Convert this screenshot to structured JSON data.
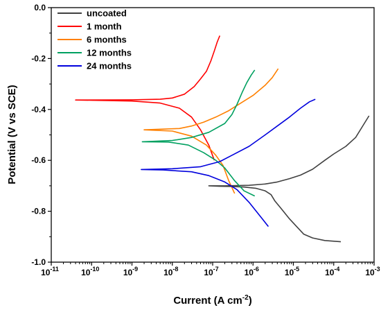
{
  "chart_data": {
    "type": "line",
    "xlabel": "Current (A cm⁻²)",
    "ylabel": "Potential (V vs SCE)",
    "xscale": "log",
    "xlim": [
      1e-11,
      0.001
    ],
    "ylim": [
      -1.0,
      0.0
    ],
    "x_tick_labels": [
      {
        "base": "10",
        "exp": "-11"
      },
      {
        "base": "10",
        "exp": "-10"
      },
      {
        "base": "10",
        "exp": "-9"
      },
      {
        "base": "10",
        "exp": "-8"
      },
      {
        "base": "10",
        "exp": "-7"
      },
      {
        "base": "10",
        "exp": "-6"
      },
      {
        "base": "10",
        "exp": "-5"
      },
      {
        "base": "10",
        "exp": "-4"
      },
      {
        "base": "10",
        "exp": "-3"
      }
    ],
    "y_tick_labels": [
      "-1.0",
      "-0.8",
      "-0.6",
      "-0.4",
      "-0.2",
      "0.0"
    ],
    "grid": false,
    "legend_position": "top-left",
    "series": [
      {
        "name": "uncoated",
        "color": "#404040",
        "points": [
          [
            0.00015,
            -0.92
          ],
          [
            6e-05,
            -0.915
          ],
          [
            3e-05,
            -0.905
          ],
          [
            1.8e-05,
            -0.89
          ],
          [
            1.2e-05,
            -0.86
          ],
          [
            8e-06,
            -0.83
          ],
          [
            5e-06,
            -0.79
          ],
          [
            3.5e-06,
            -0.76
          ],
          [
            2.8e-06,
            -0.735
          ],
          [
            2e-06,
            -0.72
          ],
          [
            1.2e-06,
            -0.71
          ],
          [
            6e-07,
            -0.705
          ],
          [
            3e-07,
            -0.703
          ],
          [
            1.5e-07,
            -0.702
          ],
          [
            8e-08,
            -0.7
          ],
          [
            2e-07,
            -0.7
          ],
          [
            8e-07,
            -0.698
          ],
          [
            2e-06,
            -0.693
          ],
          [
            4e-06,
            -0.685
          ],
          [
            8e-06,
            -0.672
          ],
          [
            1.5e-05,
            -0.658
          ],
          [
            3e-05,
            -0.635
          ],
          [
            6e-05,
            -0.6
          ],
          [
            0.0001,
            -0.575
          ],
          [
            0.0002,
            -0.545
          ],
          [
            0.00035,
            -0.51
          ],
          [
            0.0005,
            -0.47
          ],
          [
            0.00075,
            -0.425
          ]
        ]
      },
      {
        "name": "1 month",
        "color": "#ff0000",
        "points": [
          [
            1.1e-07,
            -0.6
          ],
          [
            8e-08,
            -0.54
          ],
          [
            5e-08,
            -0.48
          ],
          [
            3e-08,
            -0.43
          ],
          [
            1.5e-08,
            -0.395
          ],
          [
            5e-09,
            -0.375
          ],
          [
            1e-09,
            -0.367
          ],
          [
            1e-10,
            -0.364
          ],
          [
            4e-11,
            -0.363
          ],
          [
            1e-09,
            -0.362
          ],
          [
            5e-09,
            -0.36
          ],
          [
            1e-08,
            -0.355
          ],
          [
            2e-08,
            -0.34
          ],
          [
            3.5e-08,
            -0.31
          ],
          [
            5e-08,
            -0.28
          ],
          [
            7e-08,
            -0.25
          ],
          [
            9e-08,
            -0.21
          ],
          [
            1.1e-07,
            -0.17
          ],
          [
            1.3e-07,
            -0.135
          ],
          [
            1.5e-07,
            -0.11
          ]
        ]
      },
      {
        "name": "6 months",
        "color": "#ff8000",
        "points": [
          [
            3.5e-07,
            -0.73
          ],
          [
            2.5e-07,
            -0.68
          ],
          [
            1.8e-07,
            -0.62
          ],
          [
            1.2e-07,
            -0.58
          ],
          [
            7e-08,
            -0.54
          ],
          [
            3e-08,
            -0.505
          ],
          [
            1e-08,
            -0.485
          ],
          [
            2e-09,
            -0.48
          ],
          [
            1.5e-08,
            -0.475
          ],
          [
            3e-08,
            -0.465
          ],
          [
            6e-08,
            -0.45
          ],
          [
            1.2e-07,
            -0.43
          ],
          [
            2.5e-07,
            -0.405
          ],
          [
            5e-07,
            -0.375
          ],
          [
            1e-06,
            -0.345
          ],
          [
            2e-06,
            -0.305
          ],
          [
            3e-06,
            -0.275
          ],
          [
            4.2e-06,
            -0.24
          ]
        ]
      },
      {
        "name": "12 months",
        "color": "#00a060",
        "points": [
          [
            1.1e-06,
            -0.74
          ],
          [
            6e-07,
            -0.72
          ],
          [
            3.5e-07,
            -0.68
          ],
          [
            2e-07,
            -0.63
          ],
          [
            1.2e-07,
            -0.6
          ],
          [
            6e-08,
            -0.57
          ],
          [
            2.5e-08,
            -0.54
          ],
          [
            8e-09,
            -0.528
          ],
          [
            1.8e-09,
            -0.527
          ],
          [
            1e-08,
            -0.522
          ],
          [
            3e-08,
            -0.51
          ],
          [
            8e-08,
            -0.49
          ],
          [
            2e-07,
            -0.455
          ],
          [
            3e-07,
            -0.42
          ],
          [
            4e-07,
            -0.38
          ],
          [
            5.5e-07,
            -0.33
          ],
          [
            7e-07,
            -0.295
          ],
          [
            9e-07,
            -0.265
          ],
          [
            1.1e-06,
            -0.245
          ]
        ]
      },
      {
        "name": "24 months",
        "color": "#0000dd",
        "points": [
          [
            2.4e-06,
            -0.86
          ],
          [
            1.8e-06,
            -0.835
          ],
          [
            1.2e-06,
            -0.8
          ],
          [
            8e-07,
            -0.765
          ],
          [
            4e-07,
            -0.715
          ],
          [
            2e-07,
            -0.685
          ],
          [
            8e-08,
            -0.66
          ],
          [
            3e-08,
            -0.645
          ],
          [
            6e-09,
            -0.638
          ],
          [
            1.7e-09,
            -0.636
          ],
          [
            1e-08,
            -0.633
          ],
          [
            5e-08,
            -0.625
          ],
          [
            1.5e-07,
            -0.605
          ],
          [
            3e-07,
            -0.58
          ],
          [
            8e-07,
            -0.545
          ],
          [
            2e-06,
            -0.5
          ],
          [
            4e-06,
            -0.465
          ],
          [
            8e-06,
            -0.43
          ],
          [
            1.5e-05,
            -0.395
          ],
          [
            2.5e-05,
            -0.37
          ],
          [
            3.5e-05,
            -0.36
          ]
        ]
      }
    ]
  }
}
